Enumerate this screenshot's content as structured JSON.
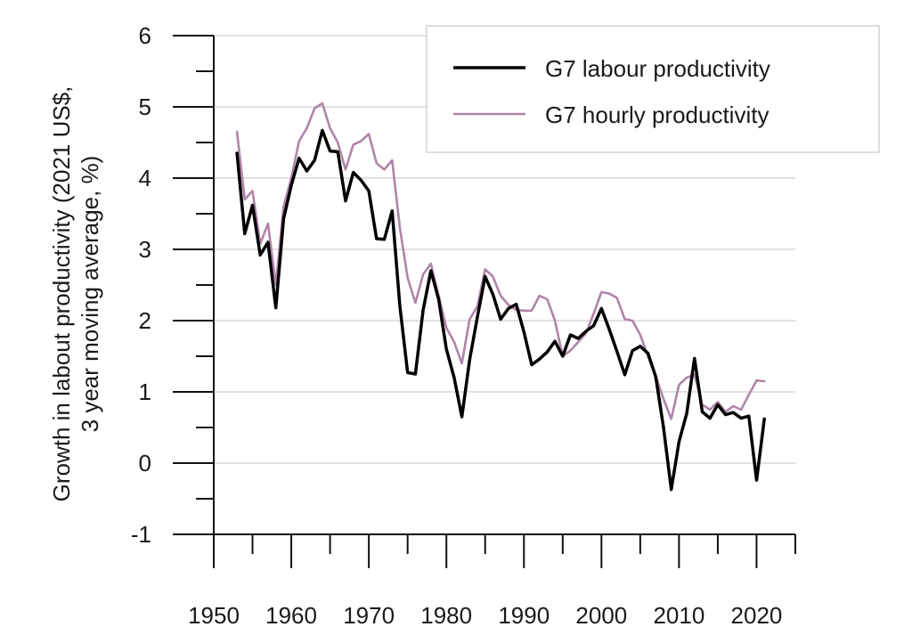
{
  "chart_data": {
    "type": "line",
    "ylabel_lines": [
      "Growth in labout productivity (2021 US$,",
      "3 year moving average, %)"
    ],
    "xlabel": "",
    "xlim": [
      1950,
      2025
    ],
    "ylim": [
      -1,
      6
    ],
    "x_ticks": [
      1950,
      1960,
      1970,
      1980,
      1990,
      2000,
      2010,
      2020
    ],
    "y_ticks": [
      -1,
      0,
      1,
      2,
      3,
      4,
      5,
      6
    ],
    "grid": "horizontal",
    "legend_position": "top-right",
    "series": [
      {
        "name": "G7 labour productivity",
        "color": "#000000",
        "x": [
          1953,
          1954,
          1955,
          1956,
          1957,
          1958,
          1959,
          1960,
          1961,
          1962,
          1963,
          1964,
          1965,
          1966,
          1967,
          1968,
          1969,
          1970,
          1971,
          1972,
          1973,
          1974,
          1975,
          1976,
          1977,
          1978,
          1979,
          1980,
          1981,
          1982,
          1983,
          1984,
          1985,
          1986,
          1987,
          1988,
          1989,
          1990,
          1991,
          1992,
          1993,
          1994,
          1995,
          1996,
          1997,
          1998,
          1999,
          2000,
          2001,
          2002,
          2003,
          2004,
          2005,
          2006,
          2007,
          2008,
          2009,
          2010,
          2011,
          2012,
          2013,
          2014,
          2015,
          2016,
          2017,
          2018,
          2019,
          2020,
          2021
        ],
        "values": [
          4.35,
          3.22,
          3.62,
          2.92,
          3.1,
          2.18,
          3.43,
          3.9,
          4.28,
          4.1,
          4.25,
          4.67,
          4.38,
          4.37,
          3.68,
          4.08,
          3.97,
          3.82,
          3.15,
          3.14,
          3.54,
          2.2,
          1.27,
          1.25,
          2.15,
          2.7,
          2.3,
          1.6,
          1.2,
          0.65,
          1.45,
          2.05,
          2.62,
          2.37,
          2.02,
          2.17,
          2.23,
          1.84,
          1.38,
          1.46,
          1.56,
          1.71,
          1.5,
          1.8,
          1.75,
          1.85,
          1.93,
          2.17,
          1.88,
          1.57,
          1.24,
          1.58,
          1.64,
          1.54,
          1.21,
          0.5,
          -0.37,
          0.3,
          0.7,
          1.47,
          0.72,
          0.63,
          0.82,
          0.68,
          0.71,
          0.63,
          0.66,
          -0.24,
          0.62
        ]
      },
      {
        "name": "G7 hourly productivity",
        "color": "#b084a8",
        "x": [
          1953,
          1954,
          1955,
          1956,
          1957,
          1958,
          1959,
          1960,
          1961,
          1962,
          1963,
          1964,
          1965,
          1966,
          1967,
          1968,
          1969,
          1970,
          1971,
          1972,
          1973,
          1974,
          1975,
          1976,
          1977,
          1978,
          1979,
          1980,
          1981,
          1982,
          1983,
          1984,
          1985,
          1986,
          1987,
          1988,
          1989,
          1990,
          1991,
          1992,
          1993,
          1994,
          1995,
          1996,
          1997,
          1998,
          1999,
          2000,
          2001,
          2002,
          2003,
          2004,
          2005,
          2006,
          2007,
          2008,
          2009,
          2010,
          2011,
          2012,
          2013,
          2014,
          2015,
          2016,
          2017,
          2018,
          2019,
          2020,
          2021
        ],
        "values": [
          4.65,
          3.7,
          3.82,
          3.08,
          3.36,
          2.5,
          3.6,
          4.0,
          4.52,
          4.7,
          4.98,
          5.05,
          4.7,
          4.5,
          4.12,
          4.47,
          4.52,
          4.62,
          4.21,
          4.12,
          4.25,
          3.3,
          2.6,
          2.25,
          2.65,
          2.8,
          2.35,
          1.9,
          1.7,
          1.4,
          2.02,
          2.2,
          2.72,
          2.62,
          2.35,
          2.22,
          2.15,
          2.14,
          2.14,
          2.35,
          2.3,
          2.0,
          1.5,
          1.58,
          1.7,
          1.82,
          2.1,
          2.4,
          2.38,
          2.32,
          2.02,
          2.0,
          1.8,
          1.5,
          1.22,
          0.9,
          0.62,
          1.1,
          1.2,
          1.24,
          0.82,
          0.75,
          0.86,
          0.72,
          0.8,
          0.75,
          0.96,
          1.16,
          1.15
        ]
      }
    ]
  }
}
